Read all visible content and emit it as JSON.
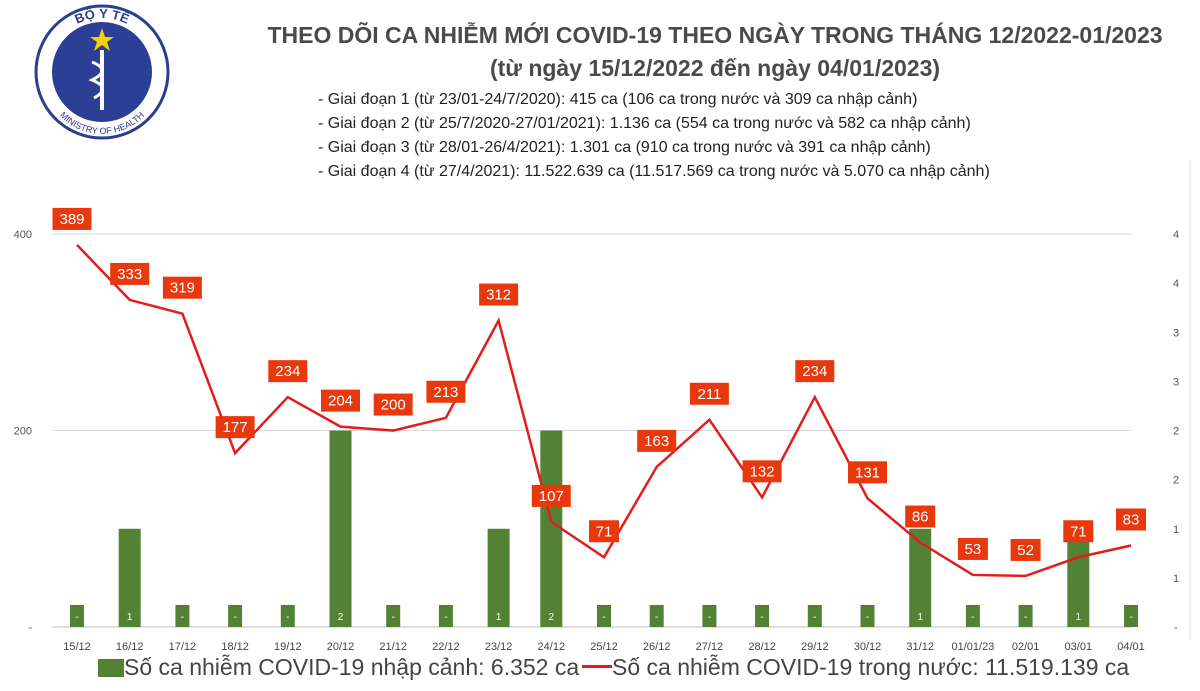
{
  "header": {
    "title_line1": "THEO DÕI CA NHIỄM MỚI COVID-19 THEO NGÀY TRONG THÁNG 12/2022-01/2023",
    "title_line2": "(từ ngày 15/12/2022 đến ngày 04/01/2023)",
    "notes": [
      "- Giai đoạn 1 (từ 23/01-24/7/2020): 415 ca (106 ca trong nước và 309 ca nhập cảnh)",
      "- Giai đoạn 2 (từ 25/7/2020-27/01/2021): 1.136 ca (554 ca trong nước và 582 ca nhập cảnh)",
      "- Giai đoạn 3 (từ 28/01-26/4/2021): 1.301 ca (910 ca trong nước và 391 ca nhập cảnh)",
      "- Giai đoạn 4 (từ 27/4/2021): 11.522.639 ca (11.517.569 ca trong nước và 5.070 ca nhập cảnh)"
    ]
  },
  "logo": {
    "top_text": "BỘ Y TẾ",
    "bottom_text": "MINISTRY OF HEALTH"
  },
  "chart_data": {
    "type": "bar+line",
    "categories": [
      "15/12",
      "16/12",
      "17/12",
      "18/12",
      "19/12",
      "20/12",
      "21/12",
      "22/12",
      "23/12",
      "24/12",
      "25/12",
      "26/12",
      "27/12",
      "28/12",
      "29/12",
      "30/12",
      "31/12",
      "01/01/23",
      "02/01",
      "03/01",
      "04/01"
    ],
    "series": [
      {
        "name": "Số ca nhiễm COVID-19 nhập cảnh: 6.352 ca",
        "type": "bar",
        "axis": "right",
        "color": "#548235",
        "values": [
          0,
          1,
          0,
          0,
          0,
          2,
          0,
          0,
          1,
          2,
          0,
          0,
          0,
          0,
          0,
          0,
          1,
          0,
          0,
          1,
          0
        ]
      },
      {
        "name": "Số ca nhiễm COVID-19 trong nước: 11.519.139 ca",
        "type": "line",
        "axis": "left",
        "color": "#e31c1c",
        "values": [
          389,
          333,
          319,
          177,
          234,
          204,
          200,
          213,
          312,
          107,
          71,
          163,
          211,
          132,
          234,
          131,
          86,
          53,
          52,
          71,
          83
        ]
      }
    ],
    "left_axis": {
      "ticks": [
        "-",
        "200",
        "400"
      ],
      "ylim": [
        0,
        450
      ]
    },
    "right_axis": {
      "ticks": [
        "-",
        "1",
        "1",
        "2",
        "2",
        "3",
        "3",
        "4",
        "4"
      ],
      "ylim": [
        0,
        4.5
      ]
    },
    "label_color": "#e8380d",
    "grid": true,
    "legend": "bottom"
  }
}
